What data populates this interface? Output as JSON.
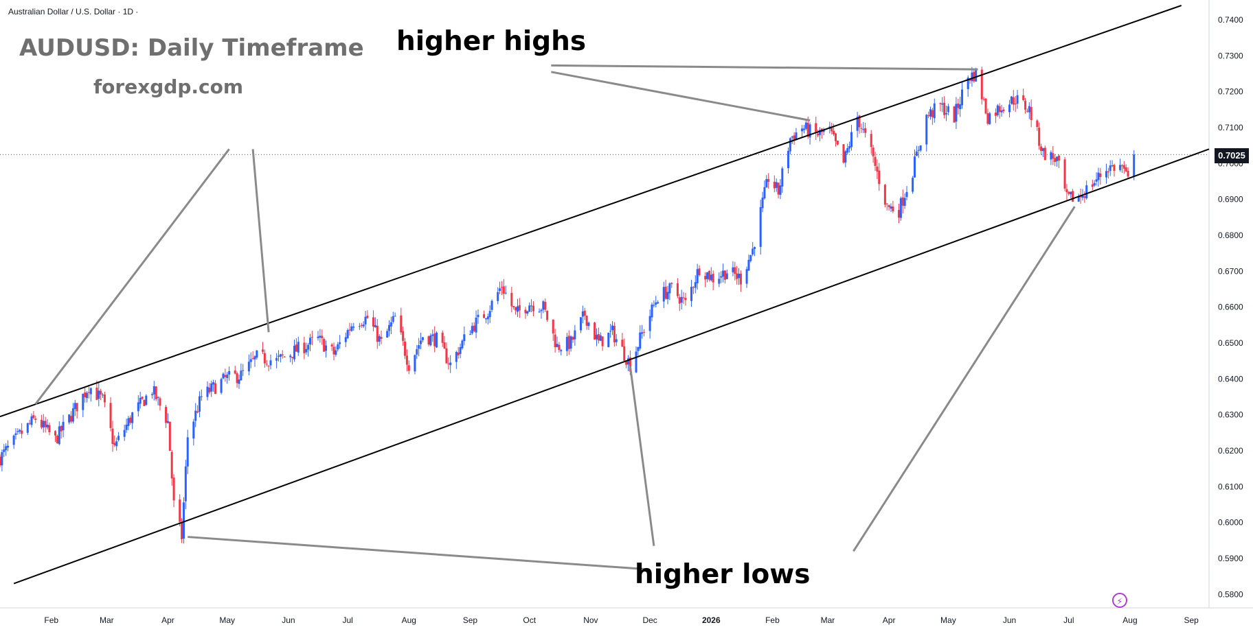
{
  "header": {
    "symbol": "Australian Dollar / U.S. Dollar · 1D ·"
  },
  "watermark": {
    "title": "AUDUSD: Daily Timeframe",
    "site": "forexgdp.com"
  },
  "annotations": {
    "higher_highs": "higher highs",
    "higher_lows": "higher lows"
  },
  "last_price_label": "0.7025",
  "colors": {
    "up": "#2962ff",
    "down": "#f23645",
    "trendline": "#000000",
    "arrow": "#8a8a8a",
    "text": "#131722"
  },
  "chart_data": {
    "type": "candlestick",
    "title": "AUDUSD: Daily Timeframe",
    "yticks": [
      "0.7400",
      "0.7300",
      "0.7200",
      "0.7100",
      "0.7000",
      "0.6900",
      "0.6800",
      "0.6700",
      "0.6600",
      "0.6500",
      "0.6400",
      "0.6300",
      "0.6200",
      "0.6100",
      "0.6000",
      "0.5900",
      "0.5800"
    ],
    "ylim": [
      0.577,
      0.744
    ],
    "xticks": [
      "Feb",
      "Mar",
      "Apr",
      "May",
      "Jun",
      "Jul",
      "Aug",
      "Sep",
      "Oct",
      "Nov",
      "Dec",
      "2026",
      "Feb",
      "Mar",
      "Apr",
      "May",
      "Jun",
      "Jul",
      "Aug",
      "Sep"
    ],
    "xtick_dates": [
      "2025-02-01",
      "2025-03-01",
      "2025-04-01",
      "2025-05-01",
      "2025-06-01",
      "2025-07-01",
      "2025-08-01",
      "2025-09-01",
      "2025-10-01",
      "2025-11-01",
      "2025-12-01",
      "2026-01-01",
      "2026-02-01",
      "2026-03-01",
      "2026-04-01",
      "2026-05-01",
      "2026-06-01",
      "2026-07-01",
      "2026-08-01",
      "2026-09-01"
    ],
    "xlim": [
      "2025-01-06",
      "2026-09-10"
    ],
    "last_price": 0.7025,
    "close_path": [
      {
        "date": "2025-01-06",
        "close": 0.618
      },
      {
        "date": "2025-01-17",
        "close": 0.625
      },
      {
        "date": "2025-01-24",
        "close": 0.629
      },
      {
        "date": "2025-02-03",
        "close": 0.623
      },
      {
        "date": "2025-02-10",
        "close": 0.629
      },
      {
        "date": "2025-02-20",
        "close": 0.638
      },
      {
        "date": "2025-02-27",
        "close": 0.634
      },
      {
        "date": "2025-03-05",
        "close": 0.621
      },
      {
        "date": "2025-03-14",
        "close": 0.63
      },
      {
        "date": "2025-03-24",
        "close": 0.637
      },
      {
        "date": "2025-04-01",
        "close": 0.628
      },
      {
        "date": "2025-04-04",
        "close": 0.605
      },
      {
        "date": "2025-04-08",
        "close": 0.596
      },
      {
        "date": "2025-04-11",
        "close": 0.624
      },
      {
        "date": "2025-04-18",
        "close": 0.635
      },
      {
        "date": "2025-04-30",
        "close": 0.64
      },
      {
        "date": "2025-05-08",
        "close": 0.641
      },
      {
        "date": "2025-05-16",
        "close": 0.646
      },
      {
        "date": "2025-05-26",
        "close": 0.645
      },
      {
        "date": "2025-06-05",
        "close": 0.648
      },
      {
        "date": "2025-06-16",
        "close": 0.651
      },
      {
        "date": "2025-06-24",
        "close": 0.647
      },
      {
        "date": "2025-07-04",
        "close": 0.656
      },
      {
        "date": "2025-07-11",
        "close": 0.657
      },
      {
        "date": "2025-07-18",
        "close": 0.65
      },
      {
        "date": "2025-07-25",
        "close": 0.657
      },
      {
        "date": "2025-08-01",
        "close": 0.644
      },
      {
        "date": "2025-08-08",
        "close": 0.652
      },
      {
        "date": "2025-08-15",
        "close": 0.651
      },
      {
        "date": "2025-08-22",
        "close": 0.644
      },
      {
        "date": "2025-09-01",
        "close": 0.654
      },
      {
        "date": "2025-09-10",
        "close": 0.659
      },
      {
        "date": "2025-09-17",
        "close": 0.666
      },
      {
        "date": "2025-09-24",
        "close": 0.658
      },
      {
        "date": "2025-10-01",
        "close": 0.661
      },
      {
        "date": "2025-10-08",
        "close": 0.66
      },
      {
        "date": "2025-10-15",
        "close": 0.649
      },
      {
        "date": "2025-10-22",
        "close": 0.65
      },
      {
        "date": "2025-10-29",
        "close": 0.658
      },
      {
        "date": "2025-11-05",
        "close": 0.65
      },
      {
        "date": "2025-11-12",
        "close": 0.653
      },
      {
        "date": "2025-11-21",
        "close": 0.644
      },
      {
        "date": "2025-11-28",
        "close": 0.654
      },
      {
        "date": "2025-12-05",
        "close": 0.663
      },
      {
        "date": "2025-12-12",
        "close": 0.665
      },
      {
        "date": "2025-12-19",
        "close": 0.661
      },
      {
        "date": "2025-12-26",
        "close": 0.671
      },
      {
        "date": "2026-01-02",
        "close": 0.668
      },
      {
        "date": "2026-01-09",
        "close": 0.67
      },
      {
        "date": "2026-01-16",
        "close": 0.668
      },
      {
        "date": "2026-01-22",
        "close": 0.676
      },
      {
        "date": "2026-01-27",
        "close": 0.689
      },
      {
        "date": "2026-01-30",
        "close": 0.696
      },
      {
        "date": "2026-02-04",
        "close": 0.692
      },
      {
        "date": "2026-02-10",
        "close": 0.707
      },
      {
        "date": "2026-02-16",
        "close": 0.71
      },
      {
        "date": "2026-02-23",
        "close": 0.708
      },
      {
        "date": "2026-03-02",
        "close": 0.709
      },
      {
        "date": "2026-03-09",
        "close": 0.7
      },
      {
        "date": "2026-03-16",
        "close": 0.713
      },
      {
        "date": "2026-03-23",
        "close": 0.703
      },
      {
        "date": "2026-03-31",
        "close": 0.688
      },
      {
        "date": "2026-04-06",
        "close": 0.687
      },
      {
        "date": "2026-04-13",
        "close": 0.698
      },
      {
        "date": "2026-04-20",
        "close": 0.713
      },
      {
        "date": "2026-04-27",
        "close": 0.716
      },
      {
        "date": "2026-05-04",
        "close": 0.713
      },
      {
        "date": "2026-05-11",
        "close": 0.724
      },
      {
        "date": "2026-05-15",
        "close": 0.725
      },
      {
        "date": "2026-05-21",
        "close": 0.713
      },
      {
        "date": "2026-05-28",
        "close": 0.716
      },
      {
        "date": "2026-06-04",
        "close": 0.718
      },
      {
        "date": "2026-06-11",
        "close": 0.715
      },
      {
        "date": "2026-06-18",
        "close": 0.703
      },
      {
        "date": "2026-06-25",
        "close": 0.701
      },
      {
        "date": "2026-06-30",
        "close": 0.69
      },
      {
        "date": "2026-07-07",
        "close": 0.691
      },
      {
        "date": "2026-07-14",
        "close": 0.695
      },
      {
        "date": "2026-07-21",
        "close": 0.699
      },
      {
        "date": "2026-07-28",
        "close": 0.699
      },
      {
        "date": "2026-07-31",
        "close": 0.695
      },
      {
        "date": "2026-08-03",
        "close": 0.7025
      }
    ],
    "trendlines": [
      {
        "name": "upper channel",
        "from": {
          "date": "2025-01-06",
          "price": 0.6295
        },
        "to": {
          "date": "2026-08-27",
          "price": 0.744
        }
      },
      {
        "name": "lower channel",
        "from": {
          "date": "2025-01-13",
          "price": 0.583
        },
        "to": {
          "date": "2026-09-10",
          "price": 0.704
        }
      }
    ],
    "arrows": [
      {
        "group": "higher_highs",
        "from": {
          "date": "2025-10-12",
          "price": 0.7273
        },
        "to": {
          "date": "2026-05-16",
          "price": 0.7262
        }
      },
      {
        "group": "higher_highs",
        "from": {
          "date": "2025-10-12",
          "price": 0.7255
        },
        "to": {
          "date": "2026-02-20",
          "price": 0.712
        }
      },
      {
        "group": "higher_highs",
        "from": {
          "date": "2025-05-02",
          "price": 0.704
        },
        "to": {
          "date": "2025-01-24",
          "price": 0.633
        }
      },
      {
        "group": "higher_highs",
        "from": {
          "date": "2025-05-14",
          "price": 0.704
        },
        "to": {
          "date": "2025-05-22",
          "price": 0.653
        }
      },
      {
        "group": "higher_lows",
        "from": {
          "date": "2025-11-29",
          "price": 0.587
        },
        "to": {
          "date": "2025-04-11",
          "price": 0.596
        }
      },
      {
        "group": "higher_lows",
        "from": {
          "date": "2025-12-03",
          "price": 0.5935
        },
        "to": {
          "date": "2025-11-21",
          "price": 0.6435
        }
      },
      {
        "group": "higher_lows",
        "from": {
          "date": "2026-03-14",
          "price": 0.592
        },
        "to": {
          "date": "2026-07-04",
          "price": 0.688
        }
      }
    ]
  }
}
